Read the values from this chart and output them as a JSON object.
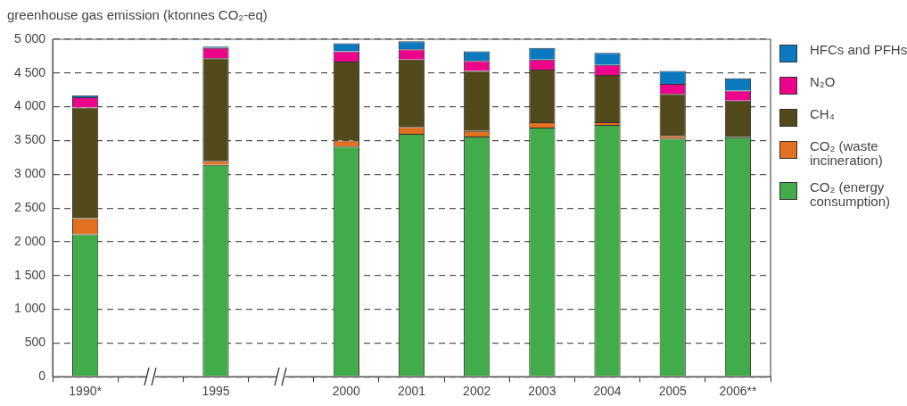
{
  "chart_data": {
    "type": "bar",
    "stacked": true,
    "ylabel": "greenhouse gas emission (ktonnes CO₂-eq)",
    "categories": [
      "1990*",
      null,
      "1995",
      null,
      "2000",
      "2001",
      "2002",
      "2003",
      "2004",
      "2005",
      "2006**"
    ],
    "series": [
      {
        "name": "CO₂ (energy consumption)",
        "color": "#43ac4a",
        "values": [
          2110,
          null,
          3140,
          null,
          3410,
          3600,
          3560,
          3690,
          3730,
          3530,
          3550
        ]
      },
      {
        "name": "CO₂ (waste incineration)",
        "color": "#e2701f",
        "values": [
          240,
          null,
          60,
          null,
          90,
          100,
          80,
          80,
          40,
          40,
          0
        ]
      },
      {
        "name": "CH₄",
        "color": "#524a1b",
        "values": [
          1640,
          null,
          1520,
          null,
          1170,
          1000,
          890,
          780,
          700,
          620,
          540
        ]
      },
      {
        "name": "N₂O",
        "color": "#eb038b",
        "values": [
          150,
          null,
          150,
          null,
          150,
          150,
          150,
          150,
          150,
          150,
          150
        ]
      },
      {
        "name": "HFCs and PFHs",
        "color": "#0a79c0",
        "values": [
          30,
          null,
          20,
          null,
          120,
          120,
          140,
          170,
          180,
          190,
          180
        ]
      }
    ],
    "ylim": [
      0,
      5000
    ],
    "yticks": [
      0,
      500,
      {
        "value": 1000,
        "label": "1 000"
      },
      {
        "value": 1500,
        "label": "1 500"
      },
      {
        "value": 2000,
        "label": "2 000"
      },
      {
        "value": 2500,
        "label": "2 500"
      },
      {
        "value": 3000,
        "label": "3 000"
      },
      {
        "value": 3500,
        "label": "3 500"
      },
      {
        "value": 4000,
        "label": "4 000"
      },
      {
        "value": 4500,
        "label": "4 500"
      },
      {
        "value": 5000,
        "label": "5 000"
      }
    ],
    "grid": "y",
    "legend": "right"
  }
}
